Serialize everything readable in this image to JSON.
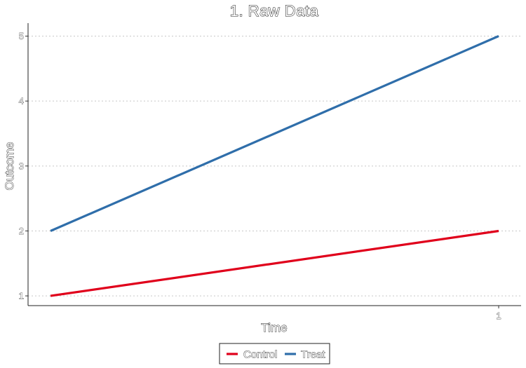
{
  "chart_data": {
    "type": "line",
    "title": "1. Raw Data",
    "xlabel": "Time",
    "ylabel": "Outcome",
    "x": [
      0,
      1
    ],
    "x_tick_values": [
      1
    ],
    "x_tick_labels": [
      "1"
    ],
    "xlim": [
      -0.05,
      1.05
    ],
    "y_ticks": [
      1,
      2,
      3,
      4,
      5
    ],
    "ylim": [
      0.85,
      5.2
    ],
    "grid": "horizontal dotted",
    "legend_position": "bottom",
    "series": [
      {
        "name": "Control",
        "color": "#e0001b",
        "values": [
          1,
          2
        ]
      },
      {
        "name": "Treat",
        "color": "#2f6eaa",
        "values": [
          2,
          5
        ]
      }
    ]
  }
}
